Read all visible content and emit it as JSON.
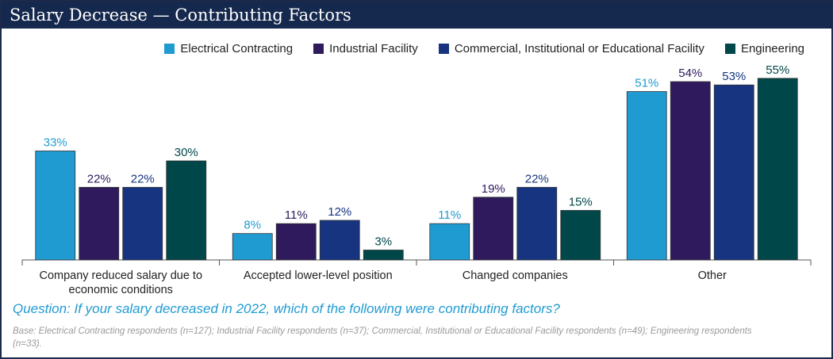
{
  "title": "Salary Decrease — Contributing Factors",
  "question": "Question: If your salary decreased in 2022, which of the following were contributing factors?",
  "base_note": "Base: Electrical Contracting respondents (n=127); Industrial Facility respondents (n=37); Commercial, Institutional or Educational Facility respondents (n=49); Engineering respondents (n=33).",
  "chart_data": {
    "type": "bar",
    "title": "Salary Decrease — Contributing Factors",
    "xlabel": "",
    "ylabel": "",
    "ylim": [
      0,
      60
    ],
    "legend_position": "top-right",
    "grid": false,
    "categories": [
      "Company reduced salary due to economic conditions",
      "Accepted lower-level position",
      "Changed companies",
      "Other"
    ],
    "category_lines": [
      [
        "Company reduced salary due to",
        "economic conditions"
      ],
      [
        "Accepted lower-level position"
      ],
      [
        "Changed companies"
      ],
      [
        "Other"
      ]
    ],
    "series": [
      {
        "name": "Electrical Contracting",
        "color": "#1f9bd1",
        "label_color": "#1f9bd1",
        "values": [
          33,
          8,
          11,
          51
        ]
      },
      {
        "name": "Industrial Facility",
        "color": "#2e1a5c",
        "label_color": "#2e1a5c",
        "values": [
          22,
          11,
          19,
          54
        ]
      },
      {
        "name": "Commercial, Institutional or Educational Facility",
        "color": "#16347f",
        "label_color": "#16347f",
        "values": [
          22,
          12,
          22,
          53
        ]
      },
      {
        "name": "Engineering",
        "color": "#00474a",
        "label_color": "#00474a",
        "values": [
          30,
          3,
          15,
          55
        ]
      }
    ]
  }
}
